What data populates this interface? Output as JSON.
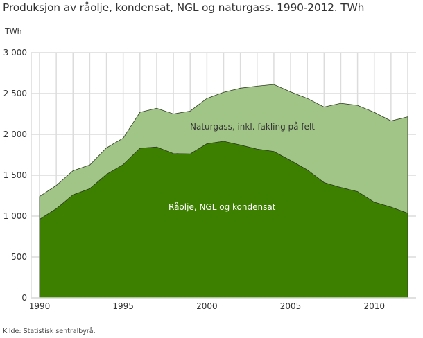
{
  "header": {
    "title": "Produksjon av råolje, kondensat, NGL og naturgass. 1990-2012. TWh",
    "unit": "TWh"
  },
  "footer": {
    "source": "Kilde: Statistisk sentralbyrå."
  },
  "colors": {
    "oil": "#3d8000",
    "gas": "#a1c586",
    "grid": "#dcdcdc",
    "outline": "#2e3d22"
  },
  "chart_data": {
    "type": "area",
    "stacked": true,
    "title": "Produksjon av råolje, kondensat, NGL og naturgass. 1990-2012. TWh",
    "xlabel": "",
    "ylabel": "TWh",
    "ylim": [
      0,
      3000
    ],
    "xlim": [
      1990,
      2012
    ],
    "grid": true,
    "legend_position": "inline labels",
    "x": [
      1990,
      1991,
      1992,
      1993,
      1994,
      1995,
      1996,
      1997,
      1998,
      1999,
      2000,
      2001,
      2002,
      2003,
      2004,
      2005,
      2006,
      2007,
      2008,
      2009,
      2010,
      2011,
      2012
    ],
    "x_ticks": [
      "1990",
      "1995",
      "2000",
      "2005",
      "2010"
    ],
    "x_tick_values": [
      1990,
      1995,
      2000,
      2005,
      2010
    ],
    "y_ticks": [
      "0",
      "500",
      "1 000",
      "1 500",
      "2 000",
      "2 500",
      "3 000"
    ],
    "y_tick_values": [
      0,
      500,
      1000,
      1500,
      2000,
      2500,
      3000
    ],
    "series": [
      {
        "name": "Råolje, NGL og kondensat",
        "values": [
          960,
          1090,
          1260,
          1335,
          1510,
          1630,
          1830,
          1845,
          1765,
          1760,
          1885,
          1915,
          1870,
          1820,
          1790,
          1680,
          1565,
          1410,
          1350,
          1300,
          1170,
          1110,
          1035
        ]
      },
      {
        "name": "Naturgass, inkl. fakling på felt",
        "values": [
          280,
          285,
          295,
          290,
          325,
          325,
          440,
          475,
          485,
          525,
          555,
          600,
          695,
          770,
          820,
          840,
          875,
          925,
          1030,
          1055,
          1100,
          1055,
          1180
        ]
      }
    ],
    "stacked_totals": [
      1240,
      1375,
      1555,
      1625,
      1835,
      1955,
      2270,
      2320,
      2250,
      2285,
      2440,
      2515,
      2565,
      2590,
      2610,
      2520,
      2440,
      2335,
      2380,
      2355,
      2270,
      2165,
      2215
    ],
    "annotations": [
      {
        "text": "Naturgass, inkl. fakling på felt",
        "x": 2003,
        "y": 2100
      },
      {
        "text": "Råolje, NGL og kondensat",
        "x": 2001,
        "y": 1100
      }
    ]
  },
  "labels": {
    "gas": "Naturgass, inkl. fakling på felt",
    "oil": "Råolje, NGL og kondensat"
  }
}
